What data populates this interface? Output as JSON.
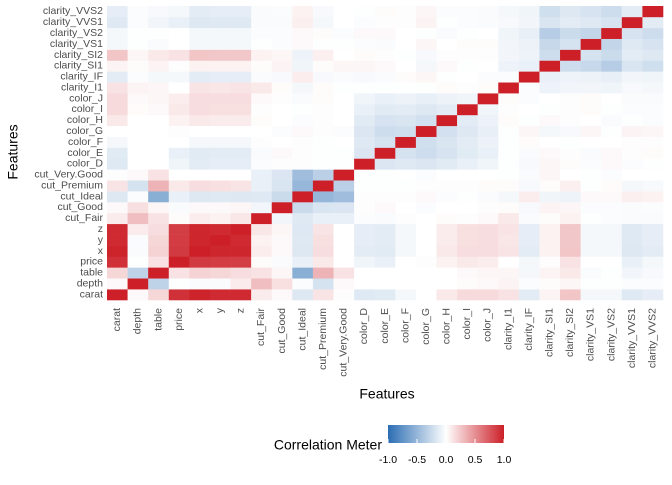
{
  "chart_data": {
    "type": "heatmap",
    "x_title": "Features",
    "y_title": "Features",
    "features": [
      "carat",
      "depth",
      "table",
      "price",
      "x",
      "y",
      "z",
      "cut_Fair",
      "cut_Good",
      "cut_Ideal",
      "cut_Premium",
      "cut_Very.Good",
      "color_D",
      "color_E",
      "color_F",
      "color_G",
      "color_H",
      "color_I",
      "color_J",
      "clarity_I1",
      "clarity_IF",
      "clarity_SI1",
      "clarity_SI2",
      "clarity_VS1",
      "clarity_VS2",
      "clarity_VVS1",
      "clarity_VVS2"
    ],
    "values": [
      [
        1,
        0.03,
        0.18,
        0.92,
        0.98,
        0.95,
        0.95,
        0.09,
        0.03,
        -0.16,
        0.12,
        0.01,
        -0.15,
        -0.14,
        -0.05,
        0,
        0.1,
        0.16,
        0.16,
        0.13,
        -0.13,
        0.05,
        0.26,
        -0.05,
        -0.05,
        -0.15,
        -0.12
      ],
      [
        0.03,
        1,
        -0.3,
        -0.01,
        -0.03,
        -0.03,
        0.09,
        0.29,
        0.14,
        -0.02,
        -0.2,
        0.03,
        0,
        0,
        0,
        0,
        0,
        0.02,
        0.03,
        0.05,
        -0.02,
        0.02,
        0.04,
        -0.01,
        -0.01,
        -0.02,
        -0.02
      ],
      [
        0.18,
        -0.3,
        1,
        0.13,
        0.2,
        0.18,
        0.15,
        0.13,
        0.04,
        -0.55,
        0.34,
        0.13,
        0,
        0,
        0,
        0,
        0,
        0.03,
        0.04,
        0.04,
        -0.05,
        0.05,
        0.1,
        -0.03,
        -0.01,
        -0.06,
        -0.04
      ],
      [
        0.92,
        -0.01,
        0.13,
        1,
        0.88,
        0.87,
        0.86,
        0.02,
        -0.03,
        -0.1,
        0.1,
        0,
        -0.07,
        -0.1,
        0,
        0.01,
        0.06,
        0.1,
        0.08,
        0,
        -0.05,
        0.01,
        0.13,
        0,
        0,
        -0.1,
        -0.05
      ],
      [
        0.98,
        -0.03,
        0.2,
        0.88,
        1,
        0.97,
        0.97,
        0.08,
        0.03,
        -0.16,
        0.15,
        0,
        -0.13,
        -0.14,
        -0.05,
        0,
        0.1,
        0.15,
        0.15,
        0.12,
        -0.13,
        0.06,
        0.26,
        -0.05,
        -0.05,
        -0.16,
        -0.13
      ],
      [
        0.95,
        -0.03,
        0.18,
        0.87,
        0.97,
        1,
        0.95,
        0.06,
        0.03,
        -0.15,
        0.14,
        0,
        -0.12,
        -0.13,
        -0.05,
        0,
        0.09,
        0.14,
        0.15,
        0.11,
        -0.12,
        0.06,
        0.25,
        -0.05,
        -0.05,
        -0.15,
        -0.12
      ],
      [
        0.95,
        0.09,
        0.15,
        0.86,
        0.97,
        0.95,
        1,
        0.11,
        0.04,
        -0.16,
        0.12,
        0,
        -0.12,
        -0.13,
        -0.05,
        0,
        0.09,
        0.14,
        0.15,
        0.12,
        -0.12,
        0.06,
        0.25,
        -0.05,
        -0.05,
        -0.15,
        -0.12
      ],
      [
        0.09,
        0.29,
        0.13,
        0.02,
        0.08,
        0.06,
        0.11,
        1,
        -0.06,
        -0.15,
        -0.1,
        -0.1,
        -0.02,
        -0.03,
        0.01,
        0,
        0.02,
        0.01,
        0.03,
        0.1,
        -0.03,
        0.02,
        0.06,
        -0.01,
        -0.02,
        -0.03,
        -0.03
      ],
      [
        0.03,
        0.14,
        0.04,
        -0.03,
        0.03,
        0.03,
        0.04,
        -0.06,
        1,
        -0.25,
        -0.18,
        -0.17,
        0.01,
        0.03,
        0,
        -0.02,
        0,
        0,
        0.01,
        0.02,
        -0.04,
        0.05,
        0.04,
        -0.02,
        -0.02,
        -0.03,
        -0.02
      ],
      [
        -0.16,
        -0.02,
        -0.55,
        -0.1,
        -0.16,
        -0.15,
        -0.16,
        -0.15,
        -0.25,
        1,
        -0.49,
        -0.45,
        0.01,
        0.01,
        0.01,
        0.03,
        -0.02,
        -0.01,
        -0.03,
        -0.05,
        0.08,
        -0.07,
        -0.08,
        0.03,
        0.03,
        0.07,
        0.06
      ],
      [
        0.12,
        -0.2,
        0.34,
        0.1,
        0.15,
        0.14,
        0.12,
        -0.1,
        -0.18,
        -0.49,
        1,
        -0.32,
        -0.01,
        -0.01,
        -0.01,
        0.01,
        0.01,
        0.01,
        0.02,
        0.02,
        -0.04,
        0.02,
        0.07,
        -0.01,
        0.02,
        -0.05,
        -0.04
      ],
      [
        0.01,
        0.03,
        0.13,
        0,
        0,
        0,
        0,
        -0.1,
        -0.17,
        -0.45,
        -0.32,
        1,
        -0.01,
        -0.01,
        0,
        -0.02,
        0,
        0,
        0,
        -0.01,
        -0.03,
        0.04,
        0,
        -0.01,
        -0.02,
        0,
        0
      ],
      [
        -0.15,
        0,
        0,
        -0.07,
        -0.13,
        -0.12,
        -0.12,
        -0.02,
        0.01,
        0.01,
        -0.01,
        -0.01,
        1,
        -0.17,
        -0.15,
        -0.17,
        -0.14,
        -0.1,
        -0.07,
        -0.01,
        -0.04,
        0.04,
        0.02,
        -0.02,
        0.03,
        -0.02,
        -0.01
      ],
      [
        -0.14,
        0,
        0,
        -0.1,
        -0.14,
        -0.13,
        -0.13,
        -0.03,
        0.03,
        0.01,
        -0.01,
        -0.01,
        -0.17,
        1,
        -0.2,
        -0.23,
        -0.19,
        -0.14,
        -0.1,
        -0.01,
        -0.03,
        0.03,
        0.01,
        -0.03,
        0.03,
        0.01,
        0.02
      ],
      [
        -0.05,
        0,
        0,
        0,
        -0.05,
        -0.05,
        -0.05,
        0.01,
        0,
        0.01,
        -0.01,
        0,
        -0.15,
        -0.2,
        1,
        -0.22,
        -0.18,
        -0.13,
        -0.09,
        -0.01,
        0.02,
        0,
        -0.01,
        0,
        0,
        0.01,
        0.01
      ],
      [
        0,
        0,
        0,
        0.01,
        0,
        0,
        0,
        0,
        -0.02,
        0.03,
        0.01,
        -0.02,
        -0.17,
        -0.23,
        -0.22,
        1,
        -0.21,
        -0.16,
        -0.11,
        -0.01,
        0.04,
        -0.05,
        -0.04,
        0.04,
        -0.01,
        0.05,
        0.04
      ],
      [
        0.1,
        0,
        0,
        0.06,
        0.1,
        0.09,
        0.09,
        0.02,
        0,
        -0.02,
        0.01,
        0,
        -0.14,
        -0.19,
        -0.18,
        -0.21,
        1,
        -0.13,
        -0.09,
        0.02,
        -0.01,
        0.03,
        0.01,
        0,
        -0.03,
        -0.01,
        -0.02
      ],
      [
        0.16,
        0.02,
        0.03,
        0.1,
        0.15,
        0.14,
        0.14,
        0.01,
        0,
        -0.01,
        0.01,
        0,
        -0.1,
        -0.14,
        -0.13,
        -0.16,
        -0.13,
        1,
        -0.07,
        0.01,
        0,
        -0.01,
        0.01,
        0.02,
        -0.01,
        -0.02,
        -0.02
      ],
      [
        0.16,
        0.03,
        0.04,
        0.08,
        0.15,
        0.15,
        0.15,
        0.03,
        0.01,
        -0.03,
        0.02,
        0,
        -0.07,
        -0.1,
        -0.09,
        -0.11,
        -0.09,
        -0.07,
        1,
        0.02,
        -0.02,
        0,
        0.01,
        0.02,
        0,
        -0.03,
        -0.03
      ],
      [
        0.13,
        0.05,
        0.04,
        0,
        0.12,
        0.11,
        0.12,
        0.1,
        0.02,
        -0.05,
        0.02,
        -0.01,
        -0.01,
        -0.01,
        -0.01,
        -0.01,
        0.02,
        0.01,
        0.02,
        1,
        -0.02,
        -0.08,
        -0.06,
        -0.06,
        -0.07,
        -0.04,
        -0.05
      ],
      [
        -0.13,
        -0.02,
        -0.05,
        -0.05,
        -0.13,
        -0.12,
        -0.12,
        -0.03,
        -0.04,
        0.08,
        -0.04,
        -0.03,
        -0.04,
        -0.03,
        0.02,
        0.04,
        -0.01,
        0,
        -0.02,
        -0.02,
        1,
        -0.1,
        -0.08,
        -0.09,
        -0.11,
        -0.06,
        -0.07
      ],
      [
        0.05,
        0.02,
        0.05,
        0.01,
        0.06,
        0.06,
        0.06,
        0.02,
        0.05,
        -0.07,
        0.02,
        0.04,
        0.04,
        0.03,
        0,
        -0.05,
        0.03,
        -0.01,
        0,
        -0.08,
        -0.1,
        1,
        -0.23,
        -0.27,
        -0.34,
        -0.18,
        -0.22
      ],
      [
        0.26,
        0.04,
        0.1,
        0.13,
        0.26,
        0.25,
        0.25,
        0.06,
        0.04,
        -0.08,
        0.07,
        0,
        0.02,
        0.01,
        -0.01,
        -0.04,
        0.01,
        0.01,
        0.01,
        -0.06,
        -0.08,
        -0.23,
        1,
        -0.2,
        -0.25,
        -0.13,
        -0.16
      ],
      [
        -0.05,
        -0.01,
        -0.03,
        0,
        -0.05,
        -0.05,
        -0.05,
        -0.01,
        -0.02,
        0.03,
        -0.01,
        -0.01,
        -0.02,
        -0.03,
        0,
        0.04,
        0,
        0.02,
        0.02,
        -0.06,
        -0.09,
        -0.27,
        -0.2,
        1,
        -0.29,
        -0.15,
        -0.19
      ],
      [
        -0.05,
        -0.01,
        -0.01,
        0,
        -0.05,
        -0.05,
        -0.05,
        -0.02,
        -0.02,
        0.03,
        0.02,
        -0.02,
        0.03,
        0.03,
        0,
        -0.01,
        -0.03,
        -0.01,
        0,
        -0.07,
        -0.11,
        -0.34,
        -0.25,
        -0.29,
        1,
        -0.19,
        -0.23
      ],
      [
        -0.15,
        -0.02,
        -0.06,
        -0.1,
        -0.16,
        -0.15,
        -0.15,
        -0.03,
        -0.03,
        0.07,
        -0.05,
        0,
        -0.02,
        0.01,
        0.01,
        0.05,
        -0.01,
        -0.02,
        -0.03,
        -0.04,
        -0.06,
        -0.18,
        -0.13,
        -0.15,
        -0.19,
        1,
        -0.13
      ],
      [
        -0.12,
        -0.02,
        -0.04,
        -0.05,
        -0.13,
        -0.12,
        -0.12,
        -0.03,
        -0.02,
        0.06,
        -0.04,
        0,
        -0.01,
        0.02,
        0.01,
        0.04,
        -0.02,
        -0.02,
        -0.03,
        -0.05,
        -0.07,
        -0.22,
        -0.16,
        -0.19,
        -0.23,
        -0.13,
        1
      ]
    ],
    "colors": [
      "#2b6db3",
      "#ffffff",
      "#cc1f27"
    ],
    "legend_title": "Correlation Meter",
    "legend_lim": [
      -1,
      1
    ],
    "legend_ticks": [
      {
        "value": -1,
        "label": "-1.0"
      },
      {
        "value": -0.5,
        "label": "-0.5"
      },
      {
        "value": 0,
        "label": "0.0"
      },
      {
        "value": 0.5,
        "label": "0.5"
      },
      {
        "value": 1,
        "label": "1.0"
      }
    ]
  }
}
